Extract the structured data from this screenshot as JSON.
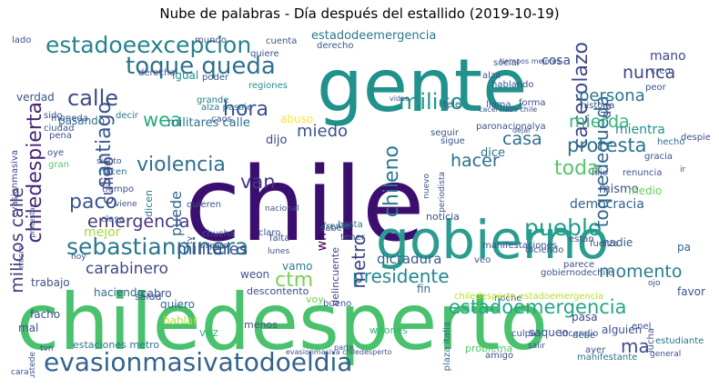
{
  "title": "Nube de palabras - Día después del estallido (2019-10-19)",
  "colors": {
    "background": "#ffffff",
    "title": "#000000"
  },
  "words": [
    {
      "text": "chile",
      "color": "#3b0f6f"
    },
    {
      "text": "chiledesperto",
      "color": "#4ac16d"
    },
    {
      "text": "gente",
      "color": "#21918c"
    },
    {
      "text": "gobierno",
      "color": "#2a9d8f"
    },
    {
      "text": "evasionmasivatodoeldia",
      "color": "#33638d"
    },
    {
      "text": "estadoeexcepcion",
      "color": "#26828e"
    },
    {
      "text": "toque queda",
      "color": "#2d708e"
    },
    {
      "text": "calle",
      "color": "#3e4a89"
    },
    {
      "text": "chiledespierta",
      "color": "#482677"
    },
    {
      "text": "sebastianpinera",
      "color": "#2a788e"
    },
    {
      "text": "pueblo",
      "color": "#1f9e89"
    },
    {
      "text": "cacerolazo",
      "color": "#3e4989"
    },
    {
      "text": "toquedequeda",
      "color": "#31688e"
    },
    {
      "text": "presidente",
      "color": "#23888e"
    },
    {
      "text": "estadoemergencia",
      "color": "#22a785"
    },
    {
      "text": "protesta",
      "color": "#2c728e"
    },
    {
      "text": "milico",
      "color": "#1f968b"
    },
    {
      "text": "mierda",
      "color": "#35b779"
    },
    {
      "text": "santiago",
      "color": "#3a548c"
    },
    {
      "text": "metro",
      "color": "#404387"
    },
    {
      "text": "violencia",
      "color": "#2e6f8e"
    },
    {
      "text": "militares",
      "color": "#3b528b"
    },
    {
      "text": "emergencia",
      "color": "#46337e"
    },
    {
      "text": "momento",
      "color": "#287d8e"
    },
    {
      "text": "carabinero",
      "color": "#3f4788"
    },
    {
      "text": "milicos calle",
      "color": "#453781"
    },
    {
      "text": "hora",
      "color": "#3e4c8a"
    },
    {
      "text": "ctm",
      "color": "#7ad151"
    },
    {
      "text": "paco",
      "color": "#39568c"
    },
    {
      "text": "persona",
      "color": "#2c738e"
    },
    {
      "text": "nunca",
      "color": "#3f4889"
    },
    {
      "text": "casa",
      "color": "#2d718e"
    },
    {
      "text": "hacer",
      "color": "#2f6c8e"
    },
    {
      "text": "chileno",
      "color": "#2a788e"
    },
    {
      "text": "toda",
      "color": "#54c568"
    },
    {
      "text": "van",
      "color": "#443a83"
    },
    {
      "text": "miedo",
      "color": "#3b528b"
    },
    {
      "text": "wea",
      "color": "#26ad81"
    },
    {
      "text": "culiao",
      "color": "#3f4788"
    },
    {
      "text": "puede",
      "color": "#31678e"
    },
    {
      "text": "dictadura",
      "color": "#355f8d"
    },
    {
      "text": "ma",
      "color": "#3d4e8a"
    },
    {
      "text": "estadodeemergencia",
      "color": "#2a778e"
    },
    {
      "text": "democracia",
      "color": "#34608d"
    },
    {
      "text": "mejor",
      "color": "#9fda3a"
    },
    {
      "text": "mismo",
      "color": "#3e4989"
    },
    {
      "text": "medio",
      "color": "#6ccd5a"
    },
    {
      "text": "mientra",
      "color": "#21918c"
    },
    {
      "text": "dice",
      "color": "#2c738e"
    },
    {
      "text": "cosa",
      "color": "#3b528b"
    },
    {
      "text": "mano",
      "color": "#3f4788"
    },
    {
      "text": "da",
      "color": "#3a548c"
    },
    {
      "text": "militares calle",
      "color": "#2d708e"
    },
    {
      "text": "abuso",
      "color": "#fde725"
    },
    {
      "text": "dijo",
      "color": "#3f4788"
    },
    {
      "text": "wn",
      "color": "#440154"
    },
    {
      "text": "fin",
      "color": "#31688e"
    },
    {
      "text": "weon",
      "color": "#3b528b"
    },
    {
      "text": "vamo",
      "color": "#2a788e"
    },
    {
      "text": "pasa",
      "color": "#3e4a89"
    },
    {
      "text": "favor",
      "color": "#3b528b"
    },
    {
      "text": "nadie",
      "color": "#355f8d"
    },
    {
      "text": "pa",
      "color": "#33638d"
    },
    {
      "text": "vez",
      "color": "#35b779"
    },
    {
      "text": "alguien",
      "color": "#3b528b"
    },
    {
      "text": "igual",
      "color": "#21918c"
    },
    {
      "text": "verdad",
      "color": "#3b528b"
    },
    {
      "text": "evasionmasiva",
      "color": "#3e4989"
    },
    {
      "text": "pasando",
      "color": "#2c728e"
    },
    {
      "text": "delincuente",
      "color": "#3e4a89"
    },
    {
      "text": "saqueo",
      "color": "#3b528b"
    },
    {
      "text": "dicen",
      "color": "#2a788e"
    },
    {
      "text": "cabro",
      "color": "#3b528b"
    },
    {
      "text": "quiero",
      "color": "#31688e"
    },
    {
      "text": "hablar",
      "color": "#b5de2b"
    },
    {
      "text": "salud",
      "color": "#3b528b"
    },
    {
      "text": "noche",
      "color": "#3e4989"
    },
    {
      "text": "amigo",
      "color": "#3b528b"
    },
    {
      "text": "plaza italia",
      "color": "#31688e"
    },
    {
      "text": "estudiante",
      "color": "#2c728e"
    },
    {
      "text": "manifestante",
      "color": "#2c728e"
    },
    {
      "text": "debe",
      "color": "#31688e"
    },
    {
      "text": "lucha",
      "color": "#3b528b"
    },
    {
      "text": "weones",
      "color": "#35b779"
    },
    {
      "text": "problema",
      "color": "#54c568"
    },
    {
      "text": "estaciones metro",
      "color": "#2a788e"
    },
    {
      "text": "menos",
      "color": "#3b528b"
    },
    {
      "text": "mal",
      "color": "#3b528b"
    },
    {
      "text": "facho",
      "color": "#3b528b"
    },
    {
      "text": "trabajo",
      "color": "#3b528b"
    },
    {
      "text": "haciendo",
      "color": "#31688e"
    },
    {
      "text": "chiledesperto estadoemergencia",
      "color": "#b5de2b"
    },
    {
      "text": "descontento",
      "color": "#3e4a89"
    },
    {
      "text": "bueno",
      "color": "#3b528b"
    },
    {
      "text": "voy",
      "color": "#6ccd5a"
    },
    {
      "text": "basta",
      "color": "#2c728e"
    },
    {
      "text": "sabe",
      "color": "#3b528b"
    },
    {
      "text": "tener",
      "color": "#3b528b"
    },
    {
      "text": "frente",
      "color": "#31688e"
    },
    {
      "text": "falta",
      "color": "#3e4a89"
    },
    {
      "text": "claro",
      "color": "#3b528b"
    },
    {
      "text": "quieren",
      "color": "#3b528b"
    },
    {
      "text": "chucha",
      "color": "#3b528b"
    },
    {
      "text": "clase",
      "color": "#31688e"
    },
    {
      "text": "tiempo",
      "color": "#3b528b"
    },
    {
      "text": "hacen",
      "color": "#2c728e"
    },
    {
      "text": "moneda",
      "color": "#3b528b"
    },
    {
      "text": "oye",
      "color": "#3b528b"
    },
    {
      "text": "gran",
      "color": "#54c568"
    },
    {
      "text": "ciudad",
      "color": "#3b528b"
    },
    {
      "text": "sido",
      "color": "#3b528b"
    },
    {
      "text": "pena",
      "color": "#3b528b"
    },
    {
      "text": "alza pasaje",
      "color": "#2a788e"
    },
    {
      "text": "caos",
      "color": "#3b528b"
    },
    {
      "text": "grande",
      "color": "#2a788e"
    },
    {
      "text": "decir",
      "color": "#2a788e"
    },
    {
      "text": "poder",
      "color": "#3b528b"
    },
    {
      "text": "regiones",
      "color": "#21918c"
    },
    {
      "text": "derecha",
      "color": "#3b528b"
    },
    {
      "text": "quiere",
      "color": "#3b528b"
    },
    {
      "text": "lado",
      "color": "#3b528b"
    },
    {
      "text": "mundo",
      "color": "#3b528b"
    },
    {
      "text": "cuenta",
      "color": "#3b528b"
    },
    {
      "text": "derecho",
      "color": "#3b528b"
    },
    {
      "text": "social",
      "color": "#3b528b"
    },
    {
      "text": "alza",
      "color": "#3b528b"
    },
    {
      "text": "peor",
      "color": "#3b528b"
    },
    {
      "text": "creo",
      "color": "#3b528b"
    },
    {
      "text": "historia",
      "color": "#3b528b"
    },
    {
      "text": "despiertachile",
      "color": "#3b528b"
    },
    {
      "text": "hecho",
      "color": "#31688e"
    },
    {
      "text": "gracia",
      "color": "#3b528b"
    },
    {
      "text": "renuncia",
      "color": "#3b528b"
    },
    {
      "text": "hijo",
      "color": "#3b528b"
    },
    {
      "text": "hablando",
      "color": "#3b528b"
    },
    {
      "text": "tele",
      "color": "#3b528b"
    },
    {
      "text": "paronacionalya",
      "color": "#3b528b"
    },
    {
      "text": "forma",
      "color": "#3b528b"
    },
    {
      "text": "llama",
      "color": "#3b528b"
    },
    {
      "text": "seguir",
      "color": "#3b528b"
    },
    {
      "text": "sigue",
      "color": "#3b528b"
    },
    {
      "text": "nuevo",
      "color": "#3b528b"
    },
    {
      "text": "periodista",
      "color": "#3b528b"
    },
    {
      "text": "noticia",
      "color": "#3b528b"
    },
    {
      "text": "diciendo",
      "color": "#3b528b"
    },
    {
      "text": "gobiernodechile",
      "color": "#3b528b"
    },
    {
      "text": "estan",
      "color": "#3b528b"
    },
    {
      "text": "fuerza",
      "color": "#3b528b"
    },
    {
      "text": "parece",
      "color": "#3b528b"
    },
    {
      "text": "enel",
      "color": "#3b528b"
    },
    {
      "text": "incendio",
      "color": "#3b528b"
    },
    {
      "text": "ayer",
      "color": "#3b528b"
    },
    {
      "text": "culpa",
      "color": "#3b528b"
    },
    {
      "text": "manifestaciones",
      "color": "#3b528b"
    },
    {
      "text": "veo",
      "color": "#3b528b"
    },
    {
      "text": "ir",
      "color": "#3b528b"
    },
    {
      "text": "tv",
      "color": "#3b528b"
    },
    {
      "text": "nacional",
      "color": "#3b528b"
    },
    {
      "text": "lunes",
      "color": "#3b528b"
    },
    {
      "text": "siento",
      "color": "#3b528b"
    },
    {
      "text": "viene",
      "color": "#3b528b"
    },
    {
      "text": "micro",
      "color": "#3b528b"
    },
    {
      "text": "tvn",
      "color": "#3b528b"
    },
    {
      "text": "hoy",
      "color": "#3b528b"
    },
    {
      "text": "espero",
      "color": "#3b528b"
    },
    {
      "text": "ojo",
      "color": "#3b528b"
    },
    {
      "text": "general",
      "color": "#3b528b"
    },
    {
      "text": "salir",
      "color": "#3b528b"
    },
    {
      "text": "cara",
      "color": "#3b528b"
    },
    {
      "text": "ustede",
      "color": "#3b528b"
    },
    {
      "text": "evasionmasiva chiledesperto",
      "color": "#3b528b"
    },
    {
      "text": "parte",
      "color": "#3b528b"
    },
    {
      "text": "protestar",
      "color": "#3b528b"
    },
    {
      "text": "tiempos mejores",
      "color": "#3b528b"
    },
    {
      "text": "video",
      "color": "#3b528b"
    },
    {
      "text": "cacerolazo chile",
      "color": "#3b528b"
    },
    {
      "text": "dejar",
      "color": "#3b528b"
    },
    {
      "text": "nada",
      "color": "#3b528b"
    },
    {
      "text": "hoy",
      "color": "#3b528b"
    }
  ]
}
